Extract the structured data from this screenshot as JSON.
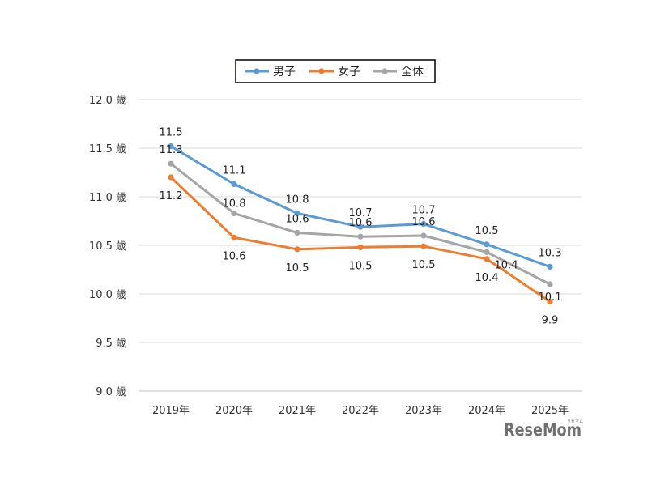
{
  "chart_data": {
    "type": "line",
    "categories": [
      "2019年",
      "2020年",
      "2021年",
      "2022年",
      "2023年",
      "2024年",
      "2025年"
    ],
    "series": [
      {
        "name": "男子",
        "color": "#5B9BD5",
        "values": [
          11.52,
          11.13,
          10.83,
          10.69,
          10.72,
          10.51,
          10.28
        ],
        "labels": [
          "11.5",
          "11.1",
          "10.8",
          "10.7",
          "10.7",
          "10.5",
          "10.3"
        ],
        "label_position": "above"
      },
      {
        "name": "女子",
        "color": "#ED7D31",
        "values": [
          11.2,
          10.58,
          10.46,
          10.48,
          10.49,
          10.36,
          9.92
        ],
        "labels": [
          "11.2",
          "10.6",
          "10.5",
          "10.5",
          "10.5",
          "10.4",
          "9.9"
        ],
        "label_position": "below"
      },
      {
        "name": "全体",
        "color": "#A5A5A5",
        "values": [
          11.34,
          10.83,
          10.63,
          10.59,
          10.6,
          10.43,
          10.1
        ],
        "labels": [
          "11.3",
          "10.8",
          "10.6",
          "10.6",
          "10.6",
          "10.4",
          "10.1"
        ],
        "label_position": "mixed"
      }
    ],
    "y_ticks": [
      "12.0 歳",
      "11.5 歳",
      "11.0 歳",
      "10.5 歳",
      "10.0 歳",
      "9.5 歳",
      "9.0 歳"
    ],
    "ylim": [
      9.0,
      12.0
    ],
    "grid": true,
    "legend_position": "top"
  },
  "watermark": {
    "text": "ReseMom",
    "small": "リセマム"
  }
}
